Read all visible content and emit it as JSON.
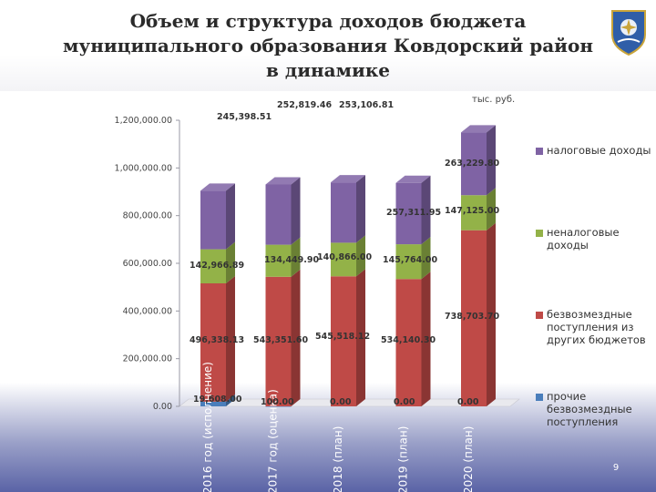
{
  "title": "Объем и структура доходов бюджета муниципального образования Ковдорский район в динамике",
  "unit_label": "тыс. руб.",
  "page_number": "9",
  "colors": {
    "tax": "#7f63a4",
    "nontax": "#93b248",
    "transfers": "#bf4a47",
    "other": "#4a7ebb"
  },
  "legend": [
    {
      "label": "налоговые доходы",
      "color": "#7f63a4"
    },
    {
      "label": "неналоговые доходы",
      "color": "#93b248"
    },
    {
      "label": "безвозмездные поступления из других бюджетов",
      "color": "#bf4a47"
    },
    {
      "label": "прочие безвозмездные поступления",
      "color": "#4a7ebb"
    }
  ],
  "chart_data": {
    "type": "bar",
    "stacked": true,
    "style": "3d-column",
    "categories": [
      "2016 год (исполнение)",
      "2017 год (оценка)",
      "2018 (план)",
      "2019 (план)",
      "2020 (план)"
    ],
    "series": [
      {
        "name": "прочие безвозмездные поступления",
        "values": [
          19608.0,
          100.0,
          0.0,
          0.0,
          0.0
        ],
        "labels": [
          "19,608.00",
          "100.00",
          "0.00",
          "0.00",
          "0.00"
        ]
      },
      {
        "name": "безвозмездные поступления из других бюджетов",
        "values": [
          496338.13,
          543351.6,
          545518.12,
          534140.3,
          738703.7
        ],
        "labels": [
          "496,338.13",
          "543,351.60",
          "545,518.12",
          "534,140.30",
          "738,703.70"
        ]
      },
      {
        "name": "неналоговые доходы",
        "values": [
          142966.89,
          134449.9,
          140866.0,
          145764.0,
          147125.0
        ],
        "labels": [
          "142,966.89",
          "134,449.90",
          "140,866.00",
          "145,764.00",
          "147,125.00"
        ]
      },
      {
        "name": "налоговые доходы",
        "values": [
          245398.51,
          252819.46,
          253106.81,
          257311.95,
          263229.8
        ],
        "labels": [
          "245,398.51",
          "252,819.46",
          "253,106.81",
          "257,311.95",
          "263,229.80"
        ]
      }
    ],
    "y_ticks": [
      "0.00",
      "200,000.00",
      "400,000.00",
      "600,000.00",
      "800,000.00",
      "1,000,000.00",
      "1,200,000.00"
    ],
    "ylim": [
      0,
      1200000
    ],
    "grid": false,
    "legend_position": "right"
  }
}
